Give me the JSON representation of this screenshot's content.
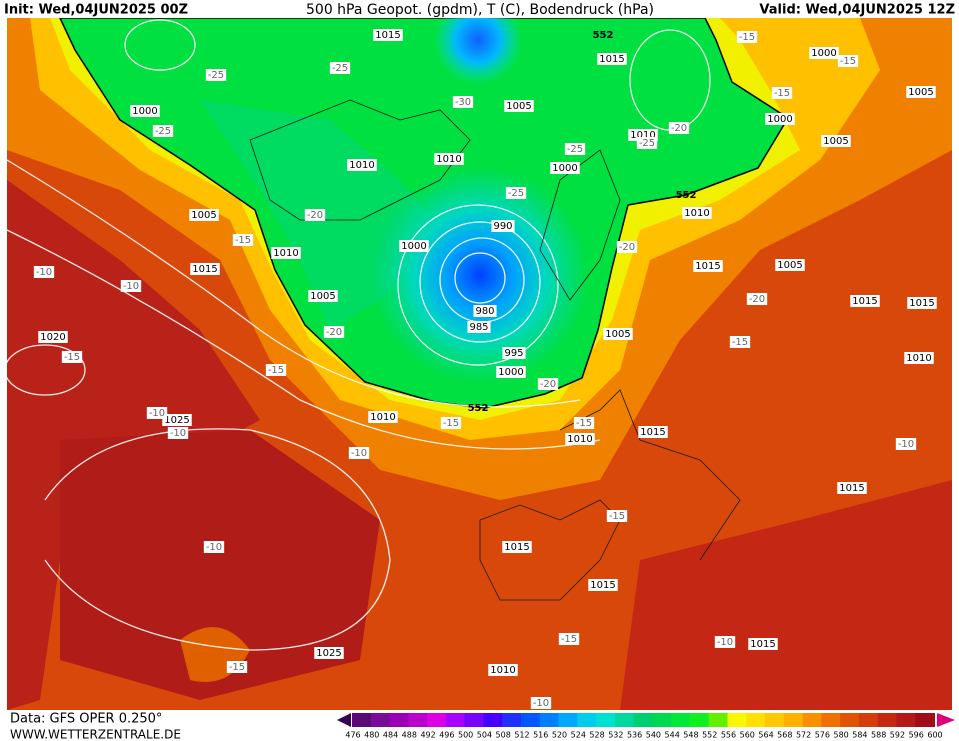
{
  "header": {
    "init": "Init: Wed,04JUN2025 00Z",
    "title": "500 hPa Geopot. (gpdm), T (C), Bodendruck (hPa)",
    "valid": "Valid: Wed,04JUN2025 12Z"
  },
  "footer": {
    "data": "Data: GFS OPER 0.250°",
    "site": "WWW.WETTERZENTRALE.DE"
  },
  "map": {
    "isobar_labels": [
      "1015",
      "1015",
      "1000",
      "1005",
      "1000",
      "1005",
      "1000",
      "1010",
      "1005",
      "1010",
      "1010",
      "1000",
      "1005",
      "1010",
      "990",
      "1000",
      "1010",
      "1015",
      "1015",
      "1005",
      "1005",
      "980",
      "985",
      "1015",
      "1015",
      "1005",
      "995",
      "1010",
      "1000",
      "1020",
      "1010",
      "1025",
      "1010",
      "1015",
      "1015",
      "1015",
      "1015",
      "1015",
      "1025",
      "1010"
    ],
    "geopotential_labels": [
      "552",
      "552",
      "552"
    ],
    "temperature_labels": [
      "-25",
      "-25",
      "-30",
      "-25",
      "-25",
      "-20",
      "-25",
      "-25",
      "-20",
      "-15",
      "-15",
      "-15",
      "-15",
      "-10",
      "-10",
      "-20",
      "-20",
      "-20",
      "-15",
      "-15",
      "-15",
      "-20",
      "-15",
      "-15",
      "-10",
      "-10",
      "-10",
      "-10",
      "-15",
      "-10",
      "-15",
      "-10",
      "-15",
      "-10"
    ]
  },
  "colorbar": {
    "levels": [
      476,
      480,
      484,
      488,
      492,
      496,
      500,
      504,
      508,
      512,
      516,
      520,
      524,
      528,
      532,
      536,
      540,
      544,
      548,
      552,
      556,
      560,
      564,
      568,
      572,
      576,
      580,
      584,
      588,
      592,
      596,
      600
    ],
    "colors": [
      "#5a0a78",
      "#7a0a98",
      "#9a00b4",
      "#bc00cc",
      "#dc00e4",
      "#a800ff",
      "#7800ff",
      "#4600ff",
      "#2030ff",
      "#0058ff",
      "#0080ff",
      "#00a8ff",
      "#00ccf0",
      "#00e0d0",
      "#00d8a0",
      "#00cc70",
      "#00d850",
      "#00e83a",
      "#10f020",
      "#60f000",
      "#f8f800",
      "#ffe000",
      "#ffc800",
      "#ffb000",
      "#f89000",
      "#f07000",
      "#e05400",
      "#d43c08",
      "#c42810",
      "#b41818",
      "#a00c18"
    ]
  }
}
